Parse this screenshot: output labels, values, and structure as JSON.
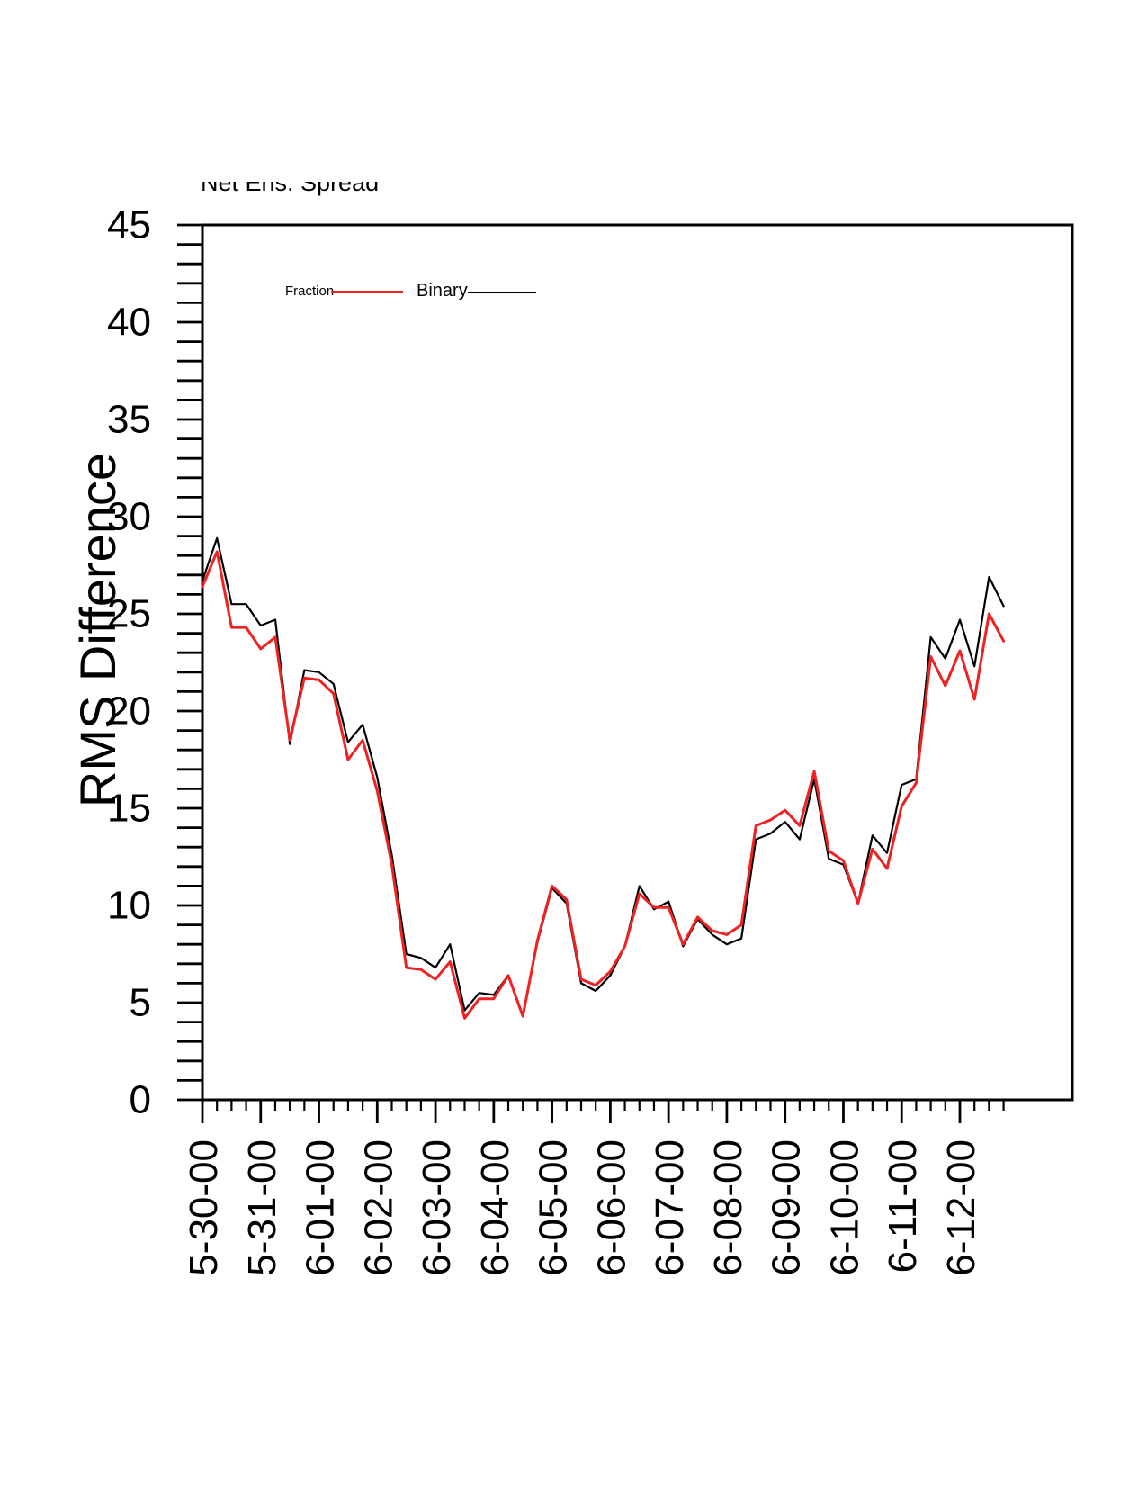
{
  "chart_data": {
    "type": "line",
    "title": "Net Ens. Spread",
    "xlabel": "",
    "ylabel": "RMS Difference",
    "ylim": [
      0,
      45
    ],
    "y_major_tick_step": 5,
    "y_minor_tick_step": 1,
    "y_tick_labels": [
      "0",
      "5",
      "10",
      "15",
      "20",
      "25",
      "30",
      "35",
      "40",
      "45"
    ],
    "x_tick_labels": [
      "5-30-00",
      "5-31-00",
      "6-01-00",
      "6-02-00",
      "6-03-00",
      "6-04-00",
      "6-05-00",
      "6-06-00",
      "6-07-00",
      "6-08-00",
      "6-09-00",
      "6-10-00",
      "6-11-00",
      "6-12-00"
    ],
    "x_start": "5-30-00",
    "x_step_hours": 6,
    "x_minor_ticks_per_day": 4,
    "grid": false,
    "legend_position": "inside-top-left",
    "series": [
      {
        "name": "Fraction",
        "color": "#ee2222",
        "values": [
          26.4,
          28.2,
          24.3,
          24.3,
          23.2,
          23.8,
          18.5,
          21.7,
          21.6,
          20.9,
          17.5,
          18.5,
          15.9,
          12.1,
          6.8,
          6.7,
          6.2,
          7.1,
          4.2,
          5.2,
          5.2,
          6.4,
          4.3,
          8.2,
          11.0,
          10.3,
          6.2,
          5.9,
          6.6,
          7.9,
          10.6,
          9.9,
          9.9,
          8.0,
          9.4,
          8.7,
          8.5,
          9.0,
          14.1,
          14.4,
          14.9,
          14.1,
          16.9,
          12.8,
          12.3,
          10.1,
          12.9,
          11.9,
          15.1,
          16.3,
          22.8,
          21.3,
          23.1,
          20.6,
          25.0,
          23.6
        ]
      },
      {
        "name": "Binary",
        "color": "#000000",
        "values": [
          26.7,
          28.9,
          25.5,
          25.5,
          24.4,
          24.7,
          18.3,
          22.1,
          22.0,
          21.4,
          18.4,
          19.3,
          16.6,
          12.6,
          7.5,
          7.3,
          6.8,
          8.0,
          4.6,
          5.5,
          5.4,
          6.4,
          4.3,
          8.1,
          10.9,
          10.1,
          6.0,
          5.6,
          6.4,
          7.9,
          11.0,
          9.8,
          10.2,
          7.9,
          9.3,
          8.5,
          8.0,
          8.3,
          13.4,
          13.7,
          14.3,
          13.4,
          16.5,
          12.4,
          12.1,
          10.1,
          13.6,
          12.7,
          16.2,
          16.5,
          23.8,
          22.7,
          24.7,
          22.3,
          26.9,
          25.4
        ]
      }
    ]
  }
}
